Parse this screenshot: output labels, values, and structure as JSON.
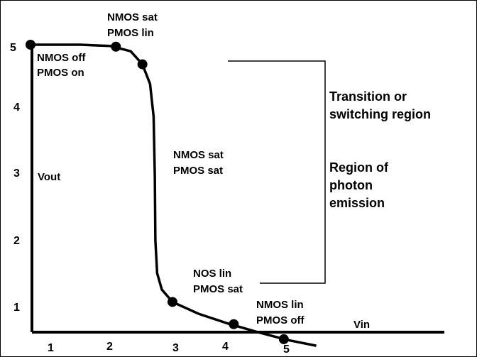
{
  "chart_data": {
    "type": "line",
    "xlabel": "Vin",
    "ylabel": "Vout",
    "x_ticks": [
      "1",
      "2",
      "3",
      "4",
      "5"
    ],
    "y_ticks": [
      "1",
      "2",
      "3",
      "4",
      "5"
    ],
    "xlim": [
      0.65,
      7.4
    ],
    "ylim": [
      0,
      5.25
    ],
    "grid": false,
    "series": [
      {
        "values": [
          [
            0.65,
            5.0
          ],
          [
            1.5,
            5.0
          ],
          [
            2.0,
            4.98
          ],
          [
            2.35,
            4.9
          ],
          [
            2.55,
            4.7
          ],
          [
            2.68,
            4.4
          ],
          [
            2.74,
            3.9
          ],
          [
            2.76,
            3.0
          ],
          [
            2.77,
            2.0
          ],
          [
            2.8,
            1.5
          ],
          [
            2.88,
            1.25
          ],
          [
            3.06,
            1.06
          ],
          [
            3.5,
            0.88
          ],
          [
            4.0,
            0.73
          ],
          [
            4.5,
            0.6
          ],
          [
            5.0,
            0.48
          ],
          [
            5.5,
            0.39
          ]
        ]
      }
    ],
    "points": [
      {
        "x": 0.65,
        "y": 5.0
      },
      {
        "x": 2.1,
        "y": 4.97
      },
      {
        "x": 2.55,
        "y": 4.7
      },
      {
        "x": 3.06,
        "y": 1.06
      },
      {
        "x": 4.1,
        "y": 0.72
      },
      {
        "x": 4.95,
        "y": 0.49
      }
    ]
  },
  "annotations": {
    "nmos_sat_pmos_lin": [
      "NMOS sat",
      "PMOS lin"
    ],
    "nmos_off_pmos_on": [
      "NMOS off",
      "PMOS on"
    ],
    "nmos_sat_pmos_sat": [
      "NMOS sat",
      "PMOS sat"
    ],
    "nos_lin_pmos_sat": [
      "NOS lin",
      "PMOS sat"
    ],
    "nmos_lin_pmos_off": [
      "NMOS lin",
      "PMOS off"
    ],
    "transition": [
      "Transition or",
      "switching region"
    ],
    "photon": [
      "Region of",
      "photon",
      "emission"
    ]
  }
}
